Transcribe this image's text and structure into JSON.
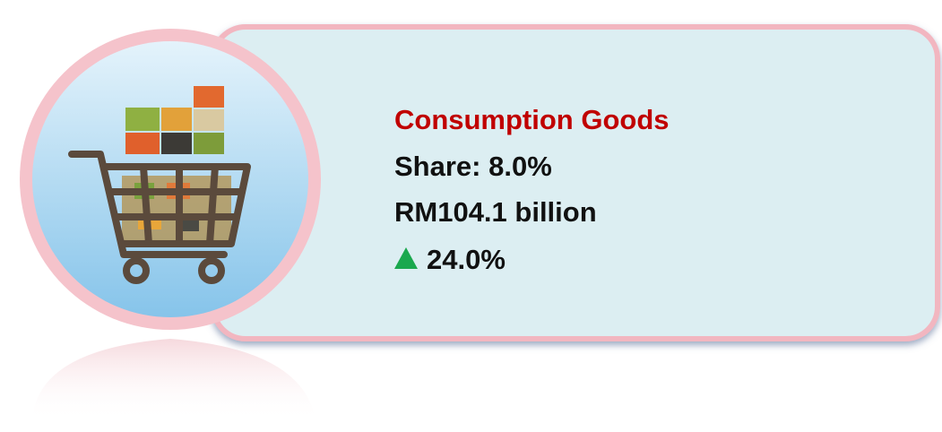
{
  "card": {
    "title": "Consumption Goods",
    "share": "Share: 8.0%",
    "value": "RM104.1 billion",
    "change": "24.0%"
  }
}
